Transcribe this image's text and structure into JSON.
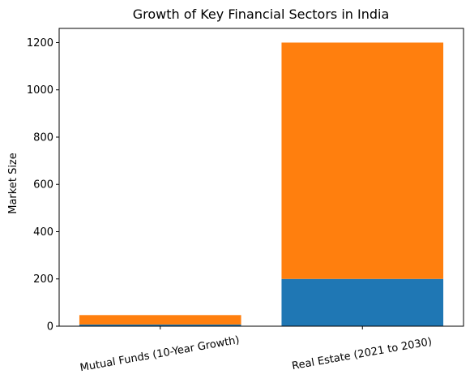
{
  "chart_data": {
    "type": "bar",
    "stacked": true,
    "title": "Growth of Key Financial Sectors in India",
    "xlabel": "",
    "ylabel": "Market Size",
    "categories": [
      "Mutual Funds (10-Year Growth)",
      "Real Estate (2021 to 2030)"
    ],
    "series": [
      {
        "color": "#1f77b4",
        "values": [
          7,
          200
        ]
      },
      {
        "color": "#ff7f0e",
        "values": [
          40,
          1000
        ]
      }
    ],
    "ylim": [
      0,
      1260
    ],
    "yticks": [
      0,
      200,
      400,
      600,
      800,
      1000,
      1200
    ],
    "grid": false,
    "legend": "none"
  }
}
